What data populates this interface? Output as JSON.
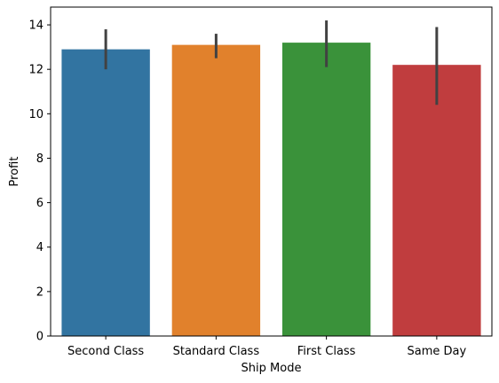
{
  "chart_data": {
    "type": "bar",
    "categories": [
      "Second Class",
      "Standard Class",
      "First Class",
      "Same Day"
    ],
    "values": [
      12.9,
      13.1,
      13.2,
      12.2
    ],
    "error_low": [
      12.0,
      12.5,
      12.1,
      10.4
    ],
    "error_high": [
      13.8,
      13.6,
      14.2,
      13.9
    ],
    "colors": [
      "#3274a1",
      "#e1812c",
      "#3a923a",
      "#c03d3e"
    ],
    "error_color": "#424242",
    "xlabel": "Ship Mode",
    "ylabel": "Profit",
    "ylim": [
      0,
      14.8
    ],
    "yticks": [
      0,
      2,
      4,
      6,
      8,
      10,
      12,
      14
    ],
    "grid": false,
    "legend": "none"
  }
}
